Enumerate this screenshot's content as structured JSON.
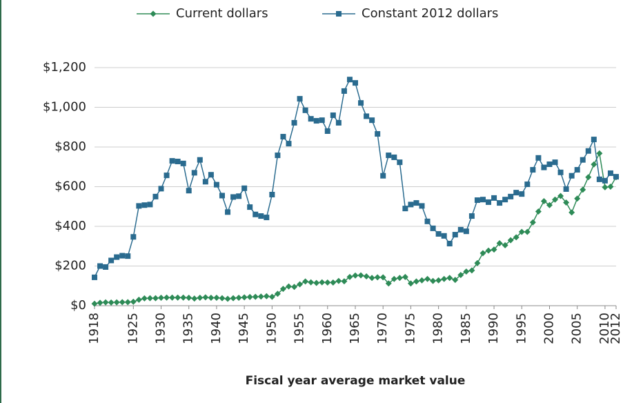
{
  "chart_data": {
    "type": "line",
    "x_label": "Fiscal year average market value",
    "x": [
      1918,
      1919,
      1920,
      1921,
      1922,
      1923,
      1924,
      1925,
      1926,
      1927,
      1928,
      1929,
      1930,
      1931,
      1932,
      1933,
      1934,
      1935,
      1936,
      1937,
      1938,
      1939,
      1940,
      1941,
      1942,
      1943,
      1944,
      1945,
      1946,
      1947,
      1948,
      1949,
      1950,
      1951,
      1952,
      1953,
      1954,
      1955,
      1956,
      1957,
      1958,
      1959,
      1960,
      1961,
      1962,
      1963,
      1964,
      1965,
      1966,
      1967,
      1968,
      1969,
      1970,
      1971,
      1972,
      1973,
      1974,
      1975,
      1976,
      1977,
      1978,
      1979,
      1980,
      1981,
      1982,
      1983,
      1984,
      1985,
      1986,
      1987,
      1988,
      1989,
      1990,
      1991,
      1992,
      1993,
      1994,
      1995,
      1996,
      1997,
      1998,
      1999,
      2000,
      2001,
      2002,
      2003,
      2004,
      2005,
      2006,
      2007,
      2008,
      2009,
      2010,
      2011,
      2012
    ],
    "series": [
      {
        "name": "Current dollars",
        "color": "#2e8b57",
        "marker": "diamond",
        "values": [
          10,
          15,
          17,
          16,
          17,
          18,
          18,
          20,
          30,
          37,
          38,
          38,
          40,
          41,
          41,
          41,
          41,
          40,
          36,
          40,
          42,
          40,
          40,
          38,
          35,
          38,
          40,
          42,
          44,
          45,
          46,
          48,
          45,
          60,
          85,
          97,
          95,
          108,
          122,
          118,
          115,
          118,
          117,
          117,
          125,
          123,
          145,
          152,
          153,
          148,
          140,
          143,
          143,
          112,
          135,
          140,
          145,
          112,
          122,
          128,
          135,
          125,
          128,
          135,
          140,
          130,
          155,
          172,
          178,
          215,
          265,
          278,
          283,
          315,
          305,
          330,
          345,
          372,
          372,
          420,
          475,
          527,
          507,
          535,
          553,
          520,
          470,
          540,
          585,
          648,
          712,
          768,
          597,
          600,
          648
        ]
      },
      {
        "name": "Constant 2012 dollars",
        "color": "#2a6b8f",
        "marker": "square",
        "values": [
          143,
          200,
          195,
          228,
          245,
          252,
          250,
          347,
          503,
          507,
          510,
          550,
          590,
          657,
          730,
          727,
          717,
          580,
          670,
          735,
          625,
          660,
          610,
          555,
          472,
          548,
          552,
          592,
          497,
          460,
          452,
          445,
          560,
          758,
          852,
          817,
          922,
          1043,
          985,
          942,
          932,
          935,
          880,
          960,
          922,
          1082,
          1140,
          1123,
          1022,
          955,
          935,
          866,
          655,
          758,
          748,
          723,
          490,
          510,
          518,
          503,
          425,
          390,
          362,
          352,
          313,
          358,
          383,
          375,
          452,
          532,
          535,
          522,
          543,
          518,
          535,
          550,
          570,
          563,
          612,
          685,
          745,
          697,
          713,
          723,
          672,
          588,
          655,
          685,
          735,
          780,
          838,
          637,
          630,
          668,
          650
        ]
      }
    ],
    "xlim": [
      1918,
      2012
    ],
    "xticks": [
      1918,
      1925,
      1930,
      1935,
      1940,
      1945,
      1950,
      1955,
      1960,
      1965,
      1970,
      1975,
      1980,
      1985,
      1990,
      1995,
      2000,
      2005,
      2010,
      2012
    ],
    "ylim": [
      0,
      1200
    ],
    "yticks": [
      {
        "value": 0,
        "label": "$0"
      },
      {
        "value": 200,
        "label": "$200"
      },
      {
        "value": 400,
        "label": "$400"
      },
      {
        "value": 600,
        "label": "$600"
      },
      {
        "value": 800,
        "label": "$800"
      },
      {
        "value": 1000,
        "label": "$1,000"
      },
      {
        "value": 1200,
        "label": "$1,200"
      }
    ],
    "grid": true,
    "legend": "top"
  }
}
